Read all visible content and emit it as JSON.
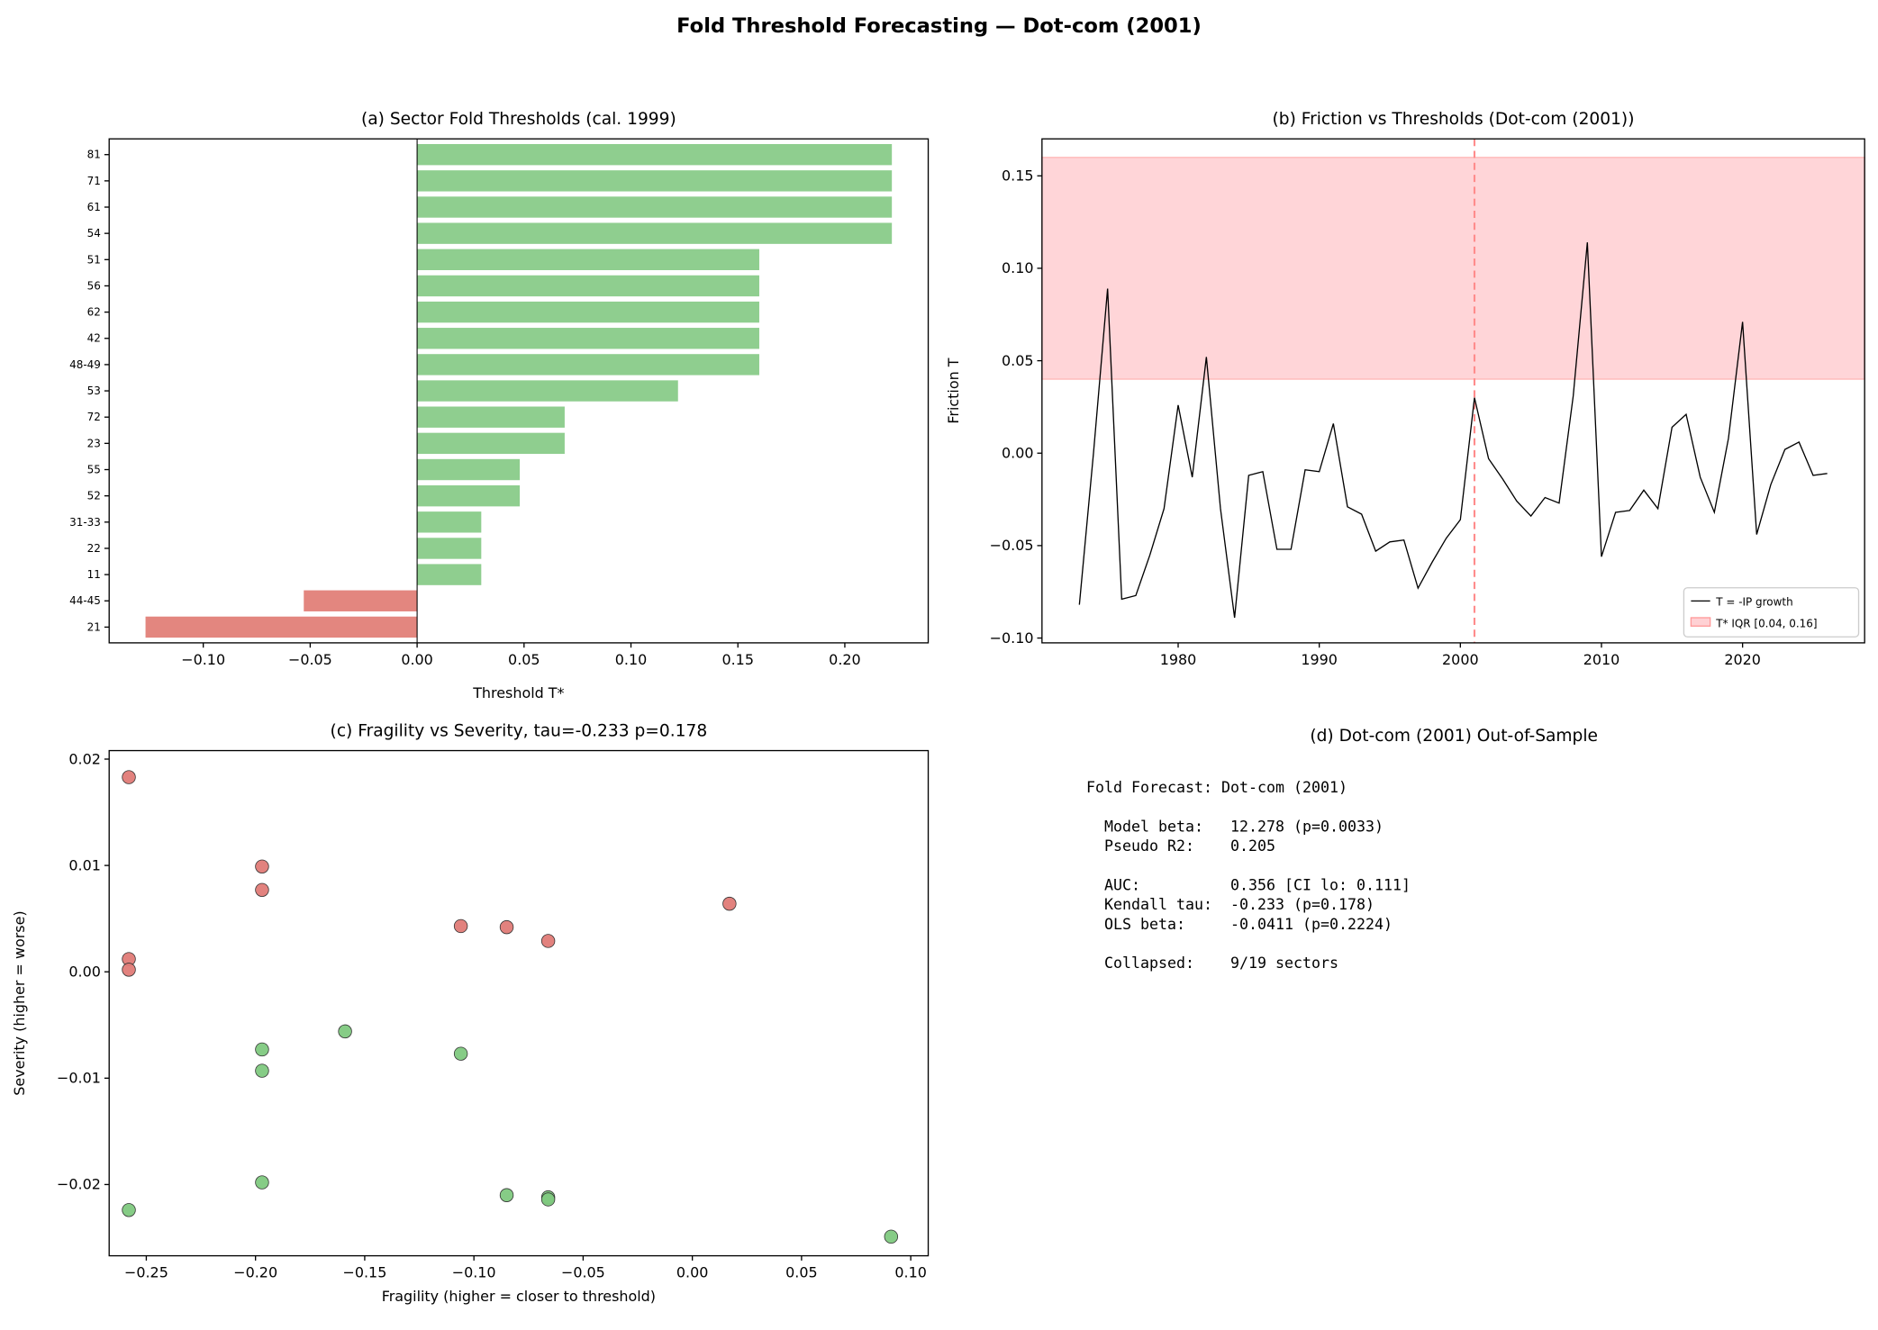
{
  "suptitle": "Fold Threshold Forecasting — Dot-com (2001)",
  "chart_data": [
    {
      "type": "bar",
      "orientation": "horizontal",
      "title": "(a) Sector Fold Thresholds (cal. 1999)",
      "xlabel": "Threshold T*",
      "xlim": [
        -0.144,
        0.239
      ],
      "xticks": [
        "−0.10",
        "−0.05",
        "0.00",
        "0.05",
        "0.10",
        "0.15",
        "0.20"
      ],
      "xtick_values": [
        -0.1,
        -0.05,
        0.0,
        0.05,
        0.1,
        0.15,
        0.2
      ],
      "categories": [
        "81",
        "71",
        "61",
        "54",
        "51",
        "56",
        "62",
        "42",
        "48-49",
        "53",
        "72",
        "23",
        "55",
        "52",
        "31-33",
        "22",
        "11",
        "44-45",
        "21"
      ],
      "values": [
        0.222,
        0.222,
        0.222,
        0.222,
        0.16,
        0.16,
        0.16,
        0.16,
        0.16,
        0.122,
        0.069,
        0.069,
        0.048,
        0.048,
        0.03,
        0.03,
        0.03,
        -0.053,
        -0.127
      ],
      "colors": {
        "positive": "#8fce8f",
        "negative": "#e3867f"
      }
    },
    {
      "type": "line",
      "title": "(b) Friction vs Thresholds (Dot-com (2001))",
      "ylabel": "Friction T",
      "xlim": [
        1970.35,
        2028.65
      ],
      "ylim": [
        -0.1026,
        0.17
      ],
      "xticks": [
        "1980",
        "1990",
        "2000",
        "2010",
        "2020"
      ],
      "xtick_values": [
        1980,
        1990,
        2000,
        2010,
        2020
      ],
      "yticks": [
        "−0.10",
        "−0.05",
        "0.00",
        "0.05",
        "0.10",
        "0.15"
      ],
      "ytick_values": [
        -0.1,
        -0.05,
        0.0,
        0.05,
        0.1,
        0.15
      ],
      "series": [
        {
          "name": "T = -IP growth",
          "color": "#000000",
          "x": [
            1973,
            1974,
            1975,
            1976,
            1977,
            1978,
            1979,
            1980,
            1981,
            1982,
            1983,
            1984,
            1985,
            1986,
            1987,
            1988,
            1989,
            1990,
            1991,
            1992,
            1993,
            1994,
            1995,
            1996,
            1997,
            1998,
            1999,
            2000,
            2001,
            2002,
            2003,
            2004,
            2005,
            2006,
            2007,
            2008,
            2009,
            2010,
            2011,
            2012,
            2013,
            2014,
            2015,
            2016,
            2017,
            2018,
            2019,
            2020,
            2021,
            2022,
            2023,
            2024,
            2025,
            2026
          ],
          "y": [
            -0.082,
            0.0,
            0.089,
            -0.079,
            -0.077,
            -0.055,
            -0.03,
            0.026,
            -0.013,
            0.052,
            -0.03,
            -0.089,
            -0.012,
            -0.01,
            -0.052,
            -0.052,
            -0.009,
            -0.01,
            0.016,
            -0.029,
            -0.033,
            -0.053,
            -0.048,
            -0.047,
            -0.073,
            -0.059,
            -0.046,
            -0.036,
            0.03,
            -0.003,
            -0.014,
            -0.026,
            -0.034,
            -0.024,
            -0.027,
            0.031,
            0.114,
            -0.056,
            -0.032,
            -0.031,
            -0.02,
            -0.03,
            0.014,
            0.021,
            -0.013,
            -0.032,
            0.008,
            0.071,
            -0.044,
            -0.017,
            0.002,
            0.006,
            -0.012,
            -0.011
          ]
        }
      ],
      "band": {
        "name": "T* IQR [0.04, 0.16]",
        "low": 0.04,
        "high": 0.16,
        "color": "#ffb3b8"
      },
      "vline": {
        "x": 2001,
        "color": "#ff8c8c",
        "style": "dashed"
      },
      "legend": "lower-right"
    },
    {
      "type": "scatter",
      "title": "(c) Fragility vs Severity, tau=-0.233 p=0.178",
      "xlabel": "Fragility (higher = closer to threshold)",
      "ylabel": "Severity (higher = worse)",
      "xlim": [
        -0.267,
        0.108
      ],
      "ylim": [
        -0.0267,
        0.0208
      ],
      "xticks": [
        "−0.25",
        "−0.20",
        "−0.15",
        "−0.10",
        "−0.05",
        "0.00",
        "0.05",
        "0.10"
      ],
      "xtick_values": [
        -0.25,
        -0.2,
        -0.15,
        -0.1,
        -0.05,
        0.0,
        0.05,
        0.1
      ],
      "yticks": [
        "−0.02",
        "−0.01",
        "0.00",
        "0.01",
        "0.02"
      ],
      "ytick_values": [
        -0.02,
        -0.01,
        0.0,
        0.01,
        0.02
      ],
      "points": [
        {
          "x": -0.258,
          "y": 0.0183,
          "collapsed": true
        },
        {
          "x": -0.197,
          "y": 0.0099,
          "collapsed": true
        },
        {
          "x": -0.197,
          "y": 0.0077,
          "collapsed": true
        },
        {
          "x": -0.258,
          "y": 0.0012,
          "collapsed": true
        },
        {
          "x": -0.258,
          "y": 0.0002,
          "collapsed": true
        },
        {
          "x": -0.106,
          "y": 0.0043,
          "collapsed": true
        },
        {
          "x": -0.085,
          "y": 0.0042,
          "collapsed": true
        },
        {
          "x": -0.066,
          "y": 0.0029,
          "collapsed": true
        },
        {
          "x": 0.017,
          "y": 0.0064,
          "collapsed": true
        },
        {
          "x": -0.258,
          "y": -0.0224,
          "collapsed": false
        },
        {
          "x": -0.197,
          "y": -0.0073,
          "collapsed": false
        },
        {
          "x": -0.197,
          "y": -0.0093,
          "collapsed": false
        },
        {
          "x": -0.159,
          "y": -0.0056,
          "collapsed": false
        },
        {
          "x": -0.106,
          "y": -0.0077,
          "collapsed": false
        },
        {
          "x": -0.197,
          "y": -0.0198,
          "collapsed": false
        },
        {
          "x": -0.085,
          "y": -0.021,
          "collapsed": false
        },
        {
          "x": -0.066,
          "y": -0.0212,
          "collapsed": false
        },
        {
          "x": -0.066,
          "y": -0.0214,
          "collapsed": false
        },
        {
          "x": 0.091,
          "y": -0.0249,
          "collapsed": false
        }
      ],
      "colors": {
        "collapsed": "#e07b77",
        "survived": "#7fc97f"
      }
    }
  ],
  "summary": {
    "title": "(d) Dot-com (2001) Out-of-Sample",
    "lines": [
      "Fold Forecast: Dot-com (2001)",
      "",
      "  Model beta:   12.278 (p=0.0033)",
      "  Pseudo R2:    0.205",
      "",
      "  AUC:          0.356 [CI lo: 0.111]",
      "  Kendall tau:  -0.233 (p=0.178)",
      "  OLS beta:     -0.0411 (p=0.2224)",
      "",
      "  Collapsed:    9/19 sectors"
    ]
  }
}
